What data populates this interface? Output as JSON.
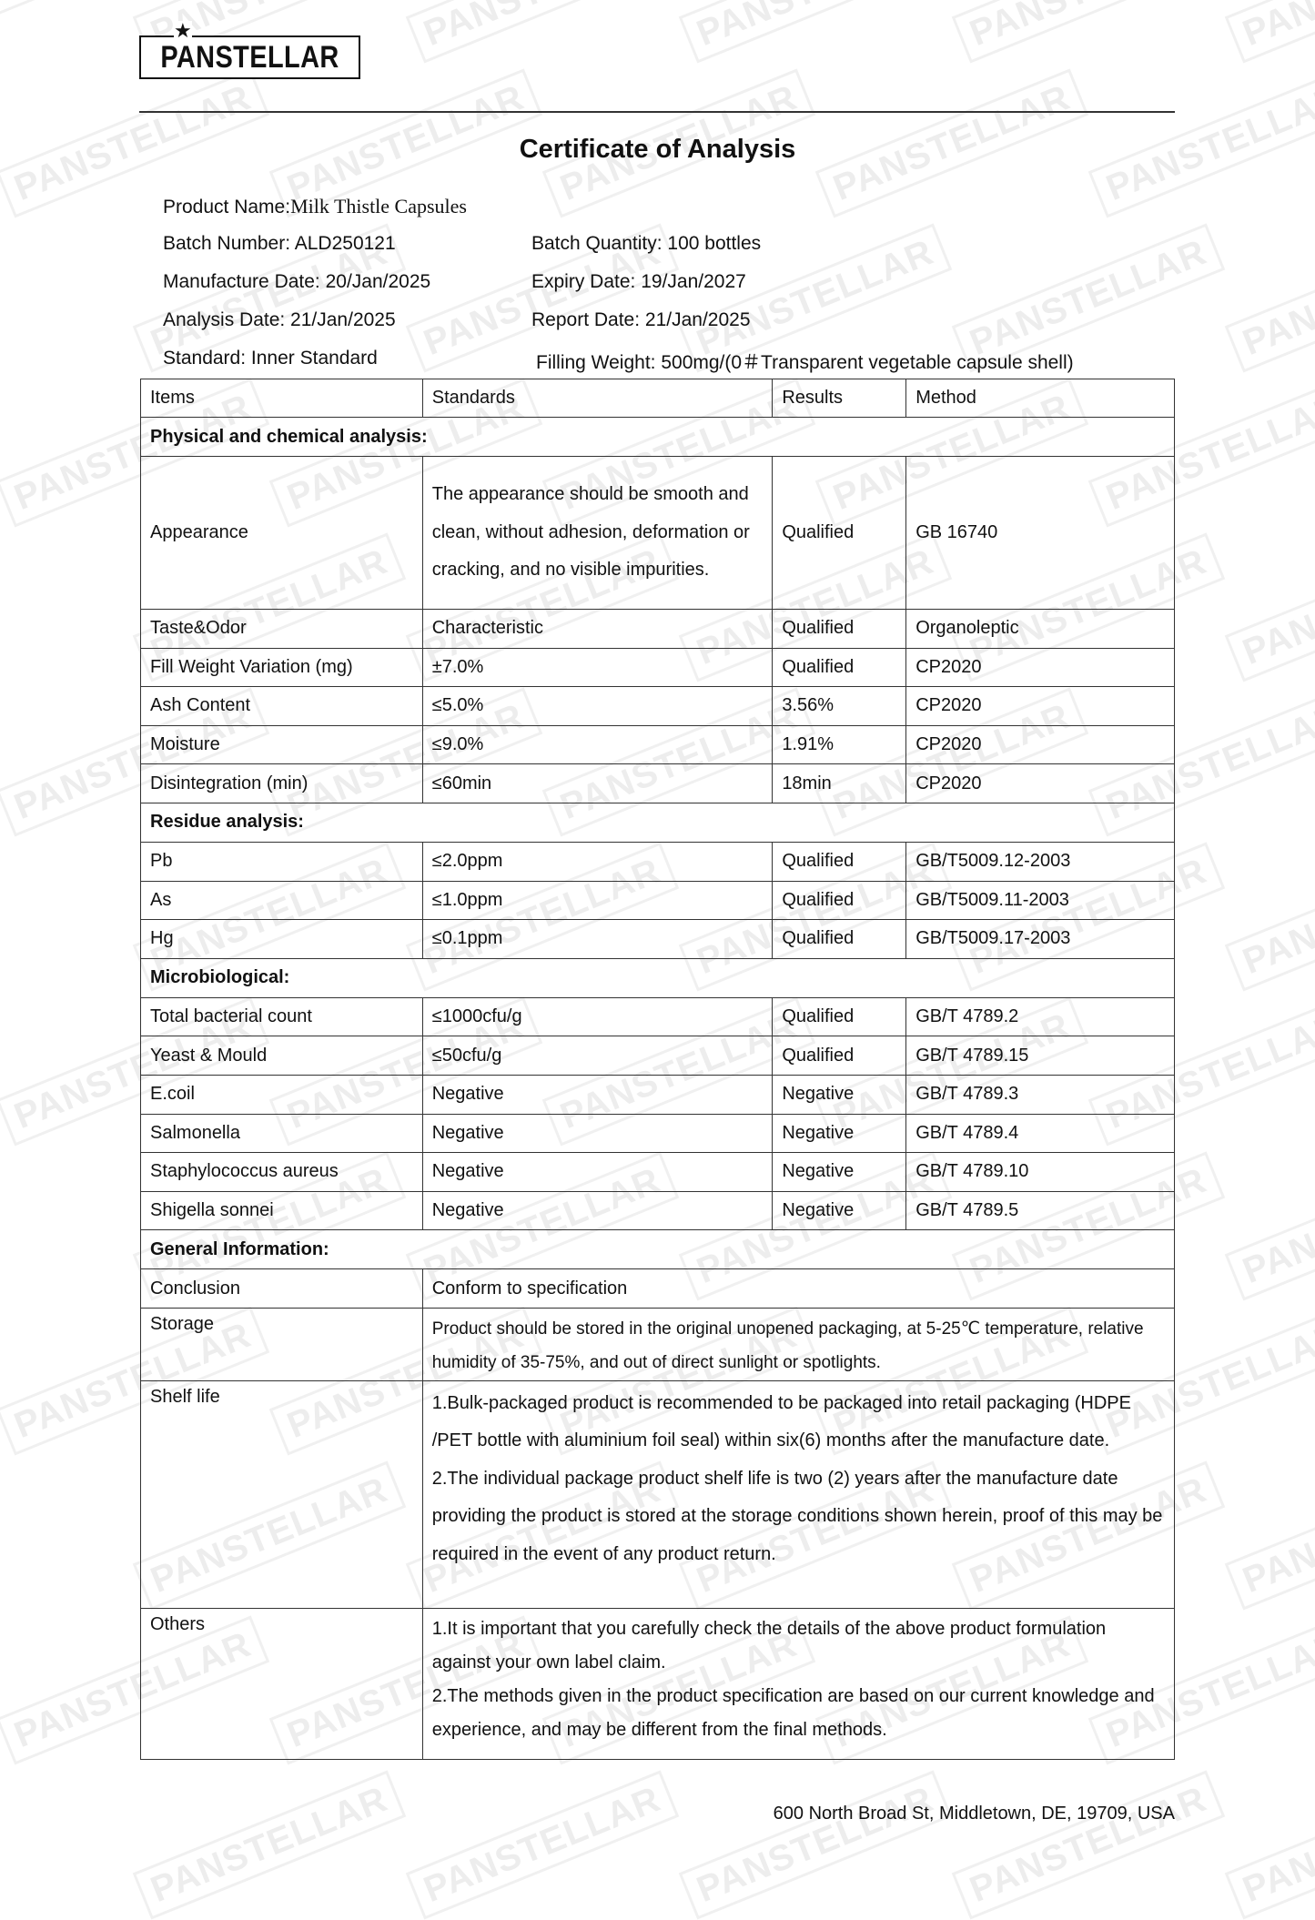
{
  "logo": {
    "text": "PANSTELLAR"
  },
  "watermark_text": "PANSTELLAR",
  "title": "Certificate of Analysis",
  "info": {
    "product_name_label": "Product Name:",
    "product_name": "Milk Thistle Capsules",
    "batch_number": "Batch Number: ALD250121",
    "batch_quantity": "Batch Quantity: 100 bottles",
    "manufacture_date": "Manufacture Date: 20/Jan/2025",
    "expiry_date": "Expiry Date: 19/Jan/2027",
    "analysis_date": "Analysis Date: 21/Jan/2025",
    "report_date": "Report Date: 21/Jan/2025",
    "standard": "Standard: Inner Standard",
    "filling_weight": "Filling Weight: 500mg/(0＃Transparent vegetable capsule shell)"
  },
  "table": {
    "headers": [
      "Items",
      "Standards",
      "Results",
      "Method"
    ],
    "sections": [
      {
        "title": "Physical and chemical analysis:",
        "rows": [
          [
            "Appearance",
            "The appearance should be smooth and clean, without adhesion, deformation or cracking, and no visible impurities.",
            "Qualified",
            "GB 16740"
          ],
          [
            "Taste&Odor",
            "Characteristic",
            "Qualified",
            "Organoleptic"
          ],
          [
            "Fill Weight Variation (mg)",
            "±7.0%",
            "Qualified",
            "CP2020"
          ],
          [
            "Ash Content",
            "≤5.0%",
            "3.56%",
            "CP2020"
          ],
          [
            "Moisture",
            "≤9.0%",
            "1.91%",
            "CP2020"
          ],
          [
            "Disintegration (min)",
            "≤60min",
            "18min",
            "CP2020"
          ]
        ]
      },
      {
        "title": "Residue analysis:",
        "rows": [
          [
            "Pb",
            "≤2.0ppm",
            "Qualified",
            "GB/T5009.12-2003"
          ],
          [
            "As",
            "≤1.0ppm",
            "Qualified",
            "GB/T5009.11-2003"
          ],
          [
            "Hg",
            "≤0.1ppm",
            "Qualified",
            "GB/T5009.17-2003"
          ]
        ]
      },
      {
        "title": "Microbiological:",
        "rows": [
          [
            "Total bacterial count",
            "≤1000cfu/g",
            "Qualified",
            "GB/T 4789.2"
          ],
          [
            "Yeast & Mould",
            "≤50cfu/g",
            "Qualified",
            "GB/T 4789.15"
          ],
          [
            "E.coil",
            "Negative",
            "Negative",
            "GB/T 4789.3"
          ],
          [
            "Salmonella",
            "Negative",
            "Negative",
            "GB/T 4789.4"
          ],
          [
            "Staphylococcus aureus",
            "Negative",
            "Negative",
            "GB/T 4789.10"
          ],
          [
            "Shigella sonnei",
            "Negative",
            "Negative",
            "GB/T 4789.5"
          ]
        ]
      }
    ],
    "general": {
      "title": "General Information:",
      "rows": [
        {
          "label": "Conclusion",
          "text": [
            "Conform to specification"
          ]
        },
        {
          "label": "Storage",
          "text": [
            "Product should be stored in the original unopened packaging, at 5-25℃ temperature, relative humidity of 35-75%, and out of direct sunlight or spotlights."
          ]
        },
        {
          "label": "Shelf life",
          "text": [
            "1.Bulk-packaged product is recommended to be packaged into retail packaging (HDPE /PET bottle with aluminium foil seal) within six(6) months after the manufacture date.",
            "2.The individual package product shelf life is two (2) years after the manufacture date providing the product is stored at the storage conditions shown herein, proof of this may be required in the event of any product return."
          ]
        },
        {
          "label": "Others",
          "text": [
            "1.It is important that you carefully check the details of the above product formulation against your own label claim.",
            "2.The methods given in the product specification are based on our current knowledge and experience, and may be different from the final methods."
          ]
        }
      ]
    }
  },
  "footer": {
    "address": "600 North Broad St, Middletown, DE, 19709, USA"
  }
}
